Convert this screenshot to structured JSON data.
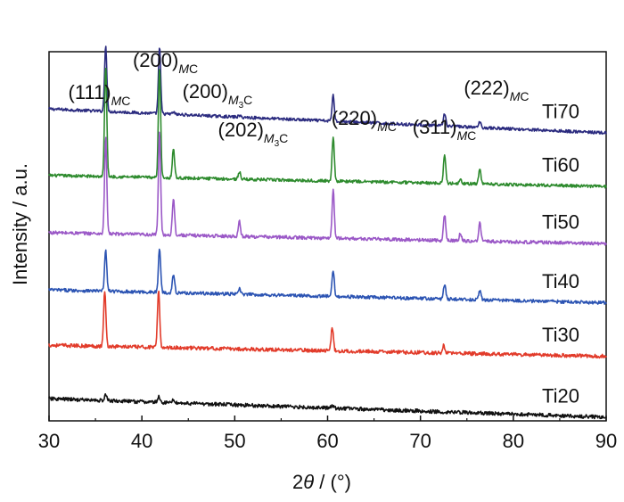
{
  "chart_data": {
    "type": "line",
    "xlabel_prefix": "2",
    "xlabel_symbol": "θ",
    "xlabel_suffix": " / (°)",
    "ylabel": "Intensity / a.u.",
    "xlim": [
      30,
      90
    ],
    "xticks": [
      30,
      40,
      50,
      60,
      70,
      80,
      90
    ],
    "grid": false,
    "legend": "labels at right end of each trace",
    "series": [
      {
        "name": "Ti70",
        "color": "#2b2b7f",
        "baseline_start": 0.845,
        "baseline_end": 0.78,
        "noise": 0.008,
        "peaks": [
          [
            36.1,
            0.18
          ],
          [
            41.9,
            0.18
          ],
          [
            43.4,
            0.006
          ],
          [
            50.5,
            0.004
          ],
          [
            60.6,
            0.07
          ],
          [
            72.6,
            0.035
          ],
          [
            76.4,
            0.015
          ]
        ]
      },
      {
        "name": "Ti60",
        "color": "#2e8b2e",
        "baseline_start": 0.665,
        "baseline_end": 0.635,
        "noise": 0.008,
        "peaks": [
          [
            36.1,
            0.3
          ],
          [
            41.9,
            0.3
          ],
          [
            43.4,
            0.08
          ],
          [
            50.5,
            0.02
          ],
          [
            60.6,
            0.12
          ],
          [
            72.6,
            0.08
          ],
          [
            74.3,
            0.015
          ],
          [
            76.4,
            0.04
          ]
        ]
      },
      {
        "name": "Ti50",
        "color": "#9b59c7",
        "baseline_start": 0.51,
        "baseline_end": 0.48,
        "noise": 0.009,
        "peaks": [
          [
            36.1,
            0.26
          ],
          [
            41.9,
            0.28
          ],
          [
            43.4,
            0.1
          ],
          [
            50.5,
            0.04
          ],
          [
            60.6,
            0.13
          ],
          [
            72.6,
            0.07
          ],
          [
            74.3,
            0.02
          ],
          [
            76.4,
            0.05
          ]
        ]
      },
      {
        "name": "Ti40",
        "color": "#2c54b3",
        "baseline_start": 0.355,
        "baseline_end": 0.32,
        "noise": 0.009,
        "peaks": [
          [
            36.1,
            0.11
          ],
          [
            41.9,
            0.12
          ],
          [
            43.4,
            0.05
          ],
          [
            50.5,
            0.015
          ],
          [
            60.6,
            0.07
          ],
          [
            72.6,
            0.04
          ],
          [
            76.4,
            0.025
          ]
        ]
      },
      {
        "name": "Ti30",
        "color": "#e23b2a",
        "baseline_start": 0.205,
        "baseline_end": 0.175,
        "noise": 0.01,
        "peaks": [
          [
            36.0,
            0.15
          ],
          [
            41.8,
            0.15
          ],
          [
            60.5,
            0.065
          ],
          [
            72.5,
            0.02
          ]
        ]
      },
      {
        "name": "Ti20",
        "color": "#111111",
        "baseline_start": 0.06,
        "baseline_end": 0.01,
        "noise": 0.01,
        "peaks": [
          [
            36.1,
            0.015
          ],
          [
            41.8,
            0.015
          ],
          [
            43.4,
            0.01
          ],
          [
            60.5,
            0.006
          ]
        ]
      }
    ],
    "annotations": [
      {
        "main": "(111)",
        "sub": "MC",
        "x": 36.1
      },
      {
        "main": "(200)",
        "sub": "MC",
        "x": 41.9
      },
      {
        "main": "(200)",
        "sub": "M3C",
        "x": 43.4
      },
      {
        "main": "(202)",
        "sub": "M3C",
        "x": 50.5
      },
      {
        "main": "(220)",
        "sub": "MC",
        "x": 60.6
      },
      {
        "main": "(311)",
        "sub": "MC",
        "x": 72.6
      },
      {
        "main": "(222)",
        "sub": "MC",
        "x": 76.4
      }
    ]
  }
}
